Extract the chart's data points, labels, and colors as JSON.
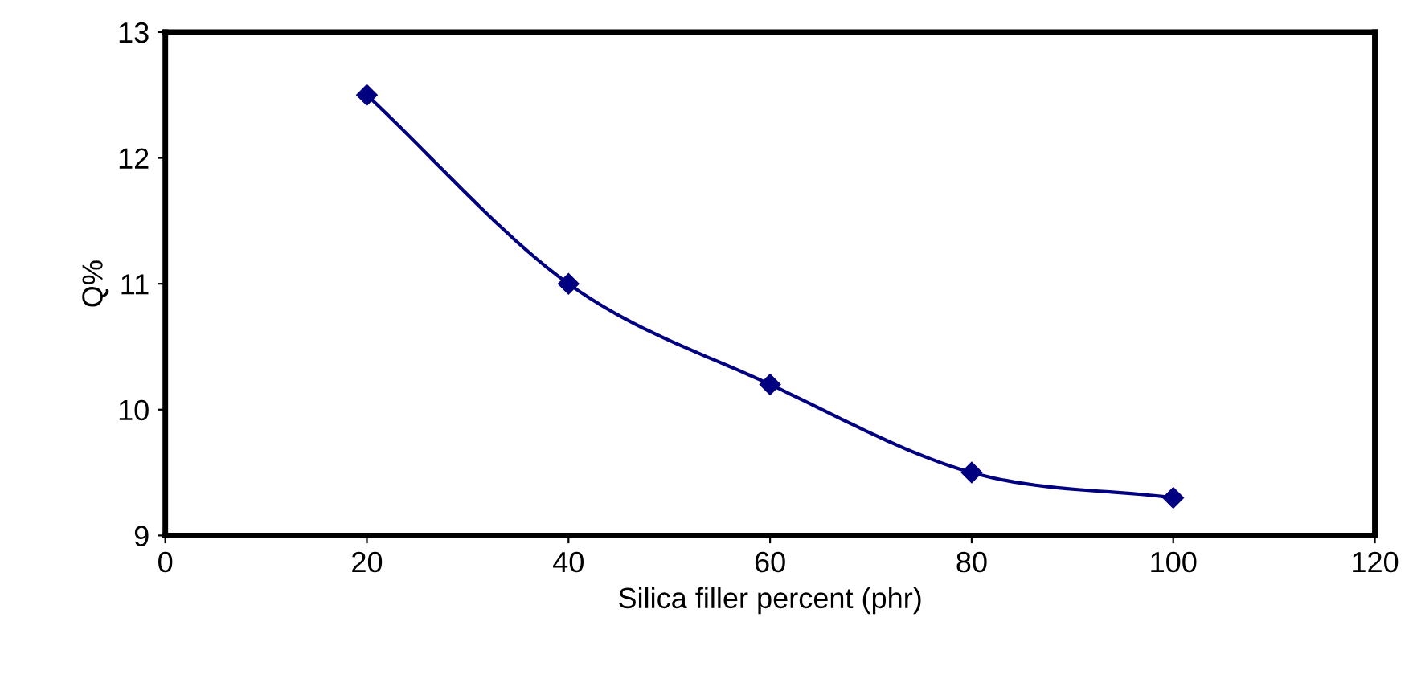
{
  "chart_data": {
    "type": "line",
    "xlabel": "Silica filler percent (phr)",
    "ylabel": "Q%",
    "x": [
      20,
      40,
      60,
      80,
      100
    ],
    "series": [
      {
        "color": "#000080",
        "values": [
          12.5,
          11.0,
          10.2,
          9.5,
          9.3
        ]
      }
    ],
    "xlim": [
      0,
      120
    ],
    "xticks": [
      0,
      20,
      40,
      60,
      80,
      100,
      120
    ],
    "ylim": [
      9,
      13
    ],
    "yticks": [
      9,
      10,
      11,
      12,
      13
    ],
    "grid": false,
    "legend": false,
    "marker": "diamond",
    "line_style": "solid"
  }
}
